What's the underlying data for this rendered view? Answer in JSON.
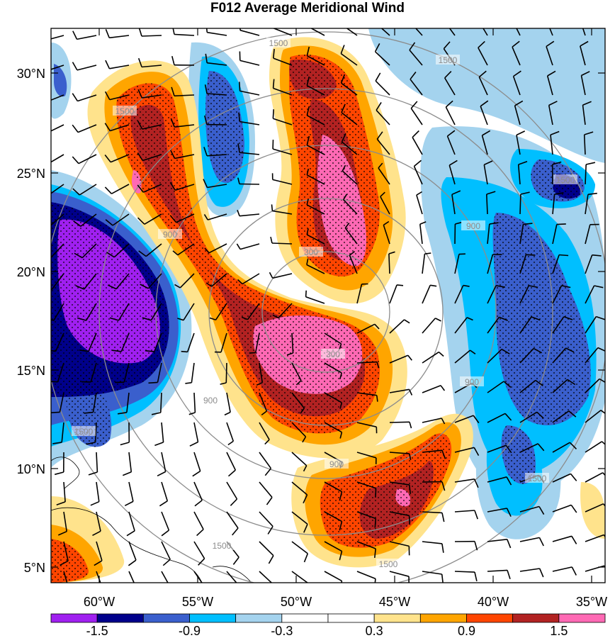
{
  "title": "F012 Average Meridional Wind",
  "lat_labels": [
    "30°N",
    "25°N",
    "20°N",
    "15°N",
    "10°N",
    "5°N"
  ],
  "lon_labels": [
    "60°W",
    "55°W",
    "50°W",
    "45°W",
    "40°W",
    "35°W"
  ],
  "colorbar": {
    "colors": [
      "#a020f0",
      "#00008b",
      "#3a5fcd",
      "#00bfff",
      "#a4d3ee",
      "#ffffff",
      "#ffffff",
      "#ffe38c",
      "#ffa500",
      "#ff4500",
      "#b22222",
      "#ff69b4"
    ],
    "labels": [
      "-1.5",
      "-0.9",
      "-0.3",
      "0.3",
      "0.9",
      "1.5"
    ]
  },
  "contour_labels": [
    "1500",
    "1500",
    "1500",
    "1500",
    "1500",
    "1500",
    "1500",
    "1500",
    "900",
    "900",
    "900",
    "900",
    "900",
    "300",
    "300"
  ]
}
